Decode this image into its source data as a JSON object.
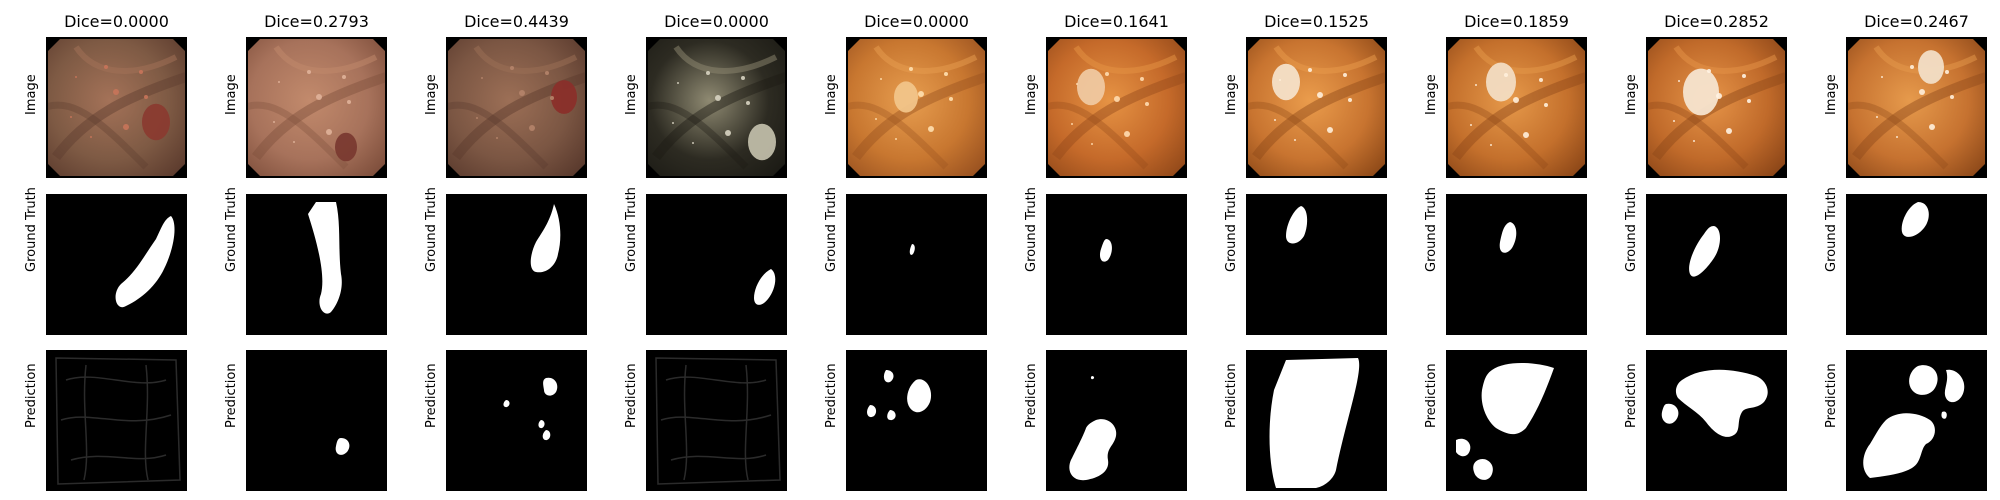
{
  "row_labels": {
    "image": "Image",
    "ground_truth": "Ground Truth",
    "prediction": "Prediction"
  },
  "columns": [
    {
      "dice": "Dice=0.0000",
      "scene": "pinkish-brown colon wall with reddish polyp at right",
      "gt_mask": "elongated mask at right",
      "pred_mask": "near-empty noisy edge map"
    },
    {
      "dice": "Dice=0.2793",
      "scene": "pink mucosa with a fold and small dark polyp",
      "gt_mask": "long diagonal stalk mask",
      "pred_mask": "single small blob"
    },
    {
      "dice": "Dice=0.4439",
      "scene": "brownish mucosa with red polyp at right",
      "gt_mask": "vertical elongated mask",
      "pred_mask": "few small blobs"
    },
    {
      "dice": "Dice=0.0000",
      "scene": "dark greyish lumen with pale tissue",
      "gt_mask": "small mask lower right",
      "pred_mask": "near-empty noisy edge map"
    },
    {
      "dice": "Dice=0.0000",
      "scene": "orange mucosa with folds",
      "gt_mask": "tiny speck",
      "pred_mask": "scattered blobs"
    },
    {
      "dice": "Dice=0.1641",
      "scene": "orange mucosa with pale polyp",
      "gt_mask": "small oval",
      "pred_mask": "irregular shape bottom left"
    },
    {
      "dice": "Dice=0.1525",
      "scene": "orange mucosa with white polyp",
      "gt_mask": "small oval upper left",
      "pred_mask": "large quadrilateral"
    },
    {
      "dice": "Dice=0.1859",
      "scene": "orange mucosa with white polyp",
      "gt_mask": "small oval",
      "pred_mask": "large irregular region"
    },
    {
      "dice": "Dice=0.2852",
      "scene": "orange mucosa with large white polyp",
      "gt_mask": "oval",
      "pred_mask": "irregular region with holes"
    },
    {
      "dice": "Dice=0.2467",
      "scene": "orange mucosa with white polyp top right",
      "gt_mask": "small oval top right",
      "pred_mask": "large blobs and arc"
    }
  ]
}
